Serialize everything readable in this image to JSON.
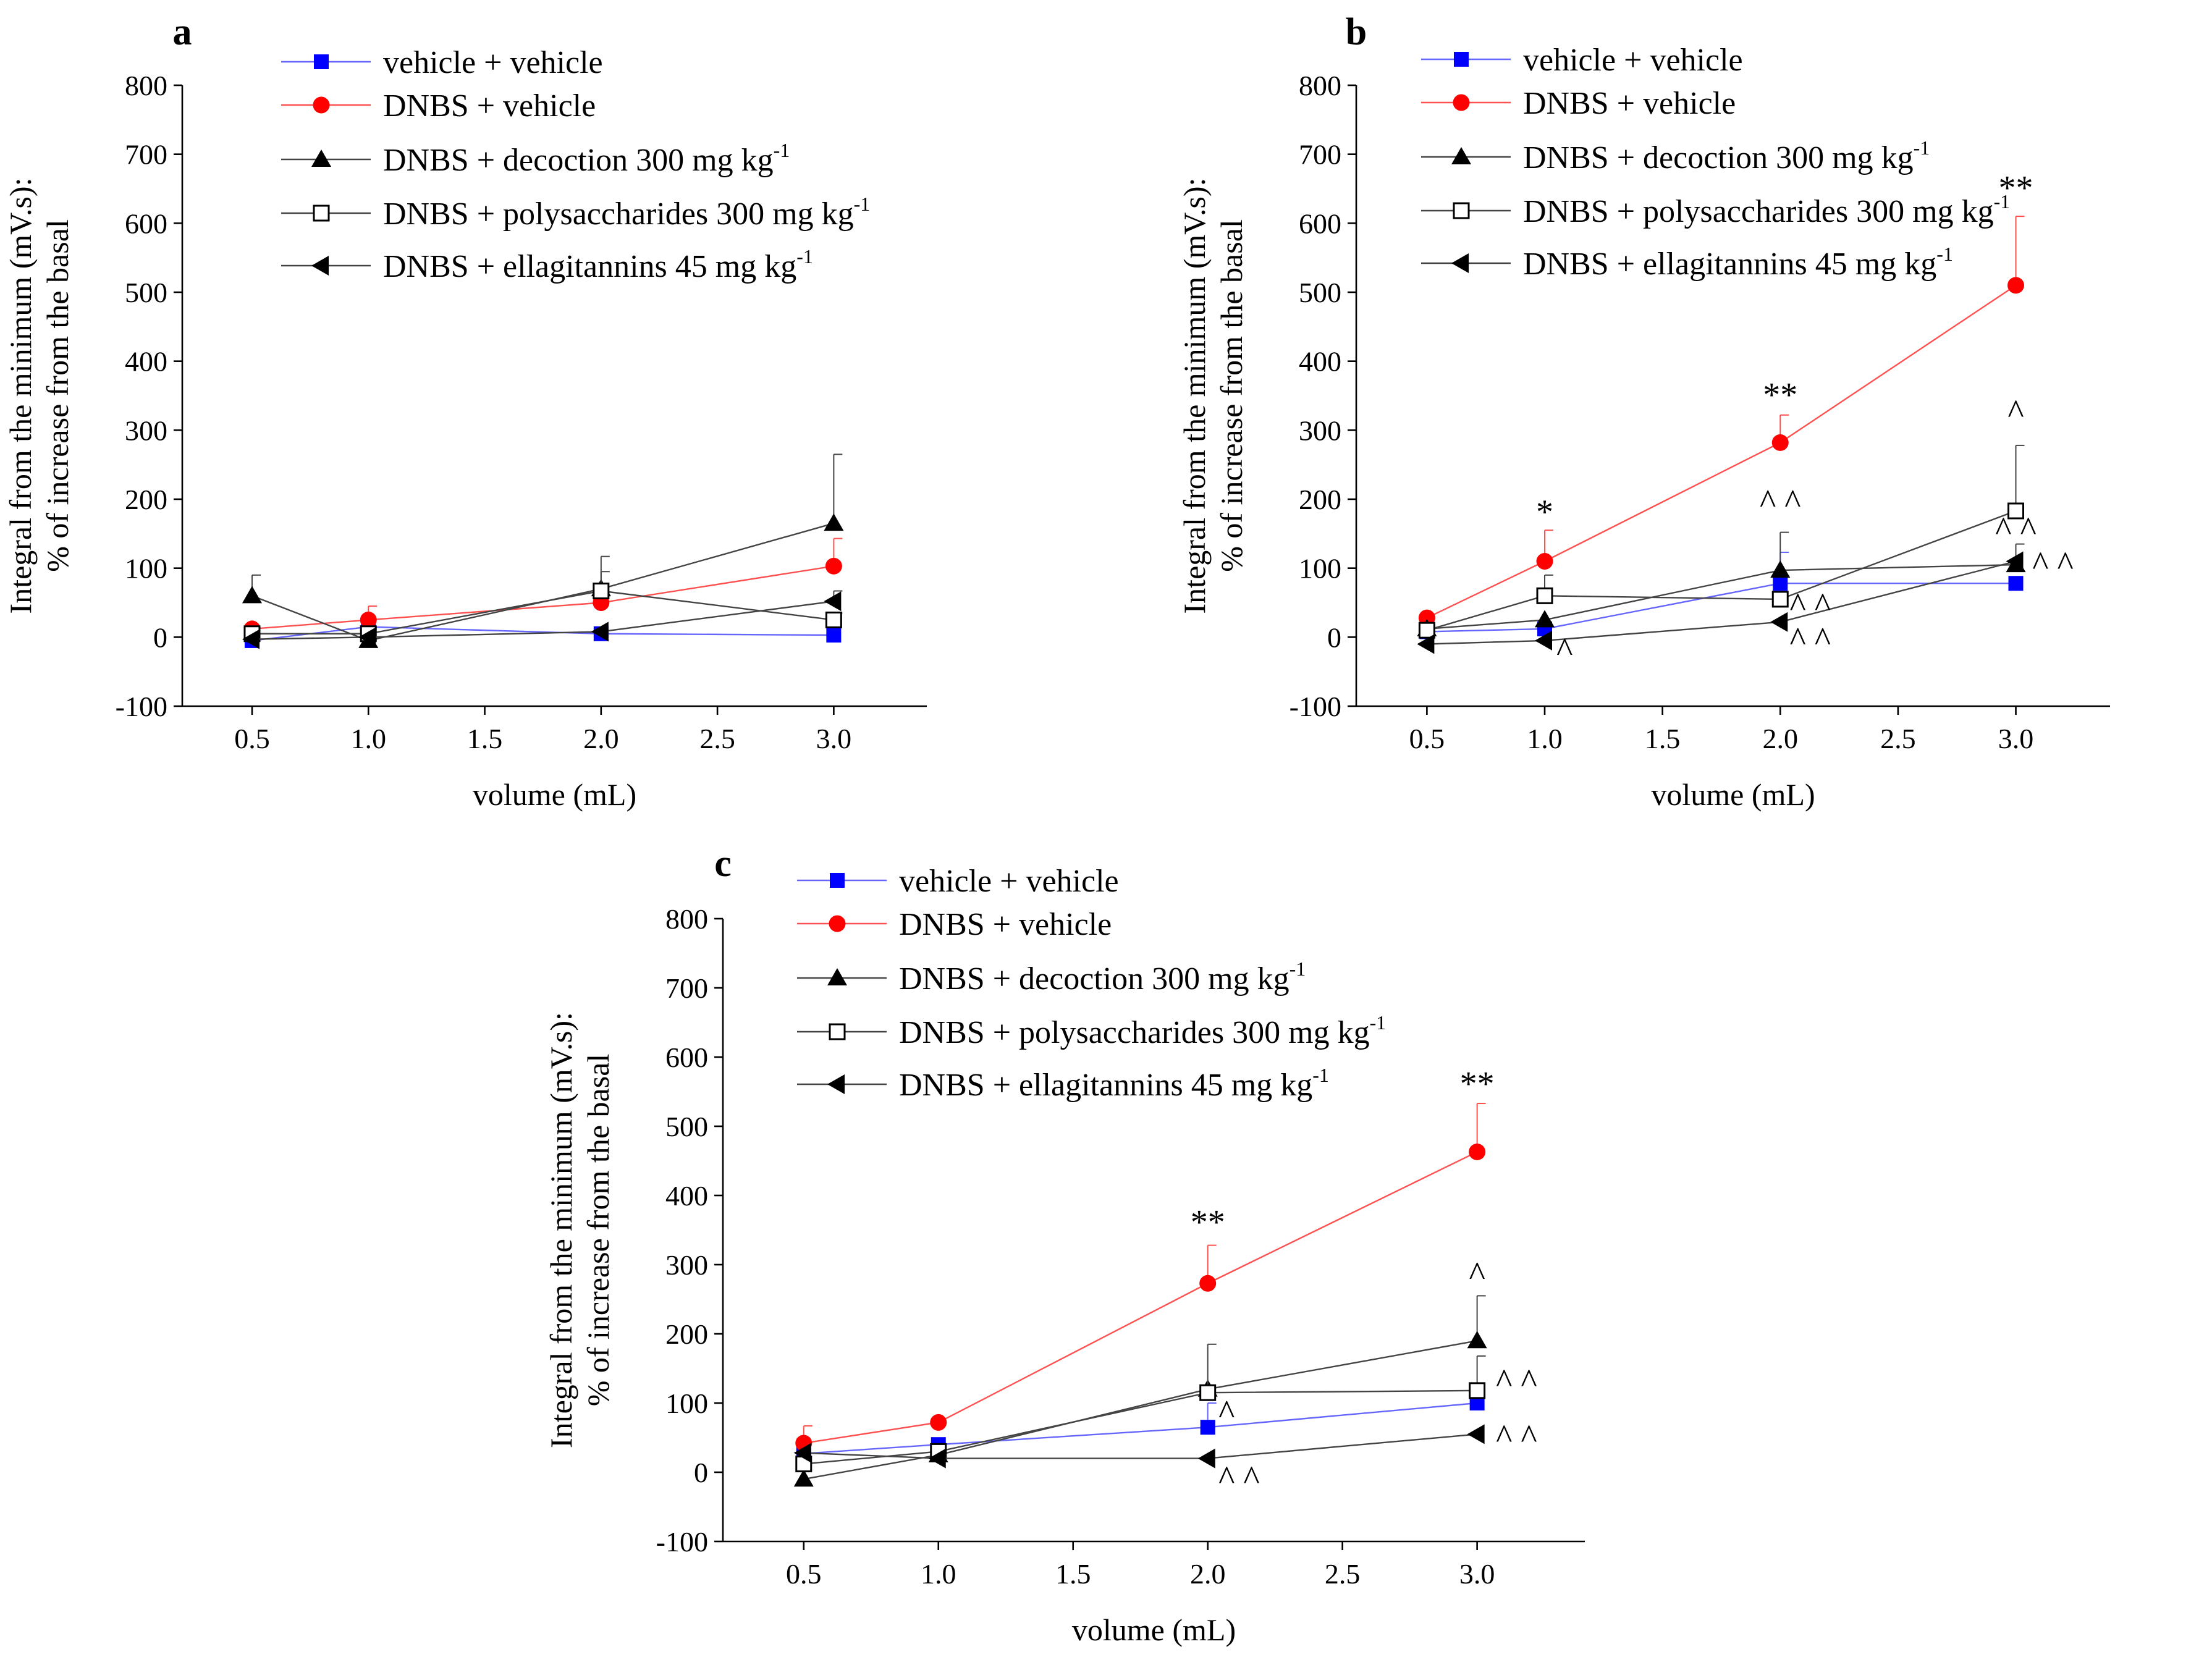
{
  "chart_data": [
    {
      "panel": "a",
      "type": "line",
      "xlabel": "volume (mL)",
      "ylabel_line1": "Integral from the minimum (mV.s):",
      "ylabel_line2": "% of increase from the basal",
      "xlim": [
        0.2,
        3.4
      ],
      "ylim": [
        -100,
        800
      ],
      "xticks": [
        0.5,
        1.0,
        1.5,
        2.0,
        2.5,
        3.0
      ],
      "xtick_labels": [
        "0.5",
        "1.0",
        "1.5",
        "2.0",
        "2.5",
        "3.0"
      ],
      "yticks": [
        -100,
        0,
        100,
        200,
        300,
        400,
        500,
        600,
        700,
        800
      ],
      "ytick_labels": [
        "-100",
        "0",
        "100",
        "200",
        "300",
        "400",
        "500",
        "600",
        "700",
        "800"
      ],
      "x": [
        0.5,
        1.0,
        2.0,
        3.0
      ],
      "series": [
        {
          "name": "vehicle + vehicle",
          "values": [
            -5,
            15,
            5,
            3
          ],
          "errors": [
            0,
            0,
            0,
            0
          ]
        },
        {
          "name": "DNBS + vehicle",
          "values": [
            12,
            25,
            50,
            103
          ],
          "errors": [
            0,
            20,
            0,
            40
          ]
        },
        {
          "name": "DNBS + decoction 300 mg kg-1",
          "values": [
            60,
            -5,
            70,
            165
          ],
          "errors": [
            30,
            0,
            25,
            100
          ]
        },
        {
          "name": "DNBS + polysaccharides 300 mg kg-1",
          "values": [
            5,
            5,
            67,
            25
          ],
          "errors": [
            0,
            0,
            50,
            10
          ]
        },
        {
          "name": "DNBS + ellagitannins 45 mg kg-1",
          "values": [
            -3,
            0,
            8,
            52
          ],
          "errors": [
            0,
            0,
            0,
            15
          ]
        }
      ],
      "annotations": []
    },
    {
      "panel": "b",
      "type": "line",
      "xlabel": "volume (mL)",
      "ylabel_line1": "Integral from the minimum (mV.s):",
      "ylabel_line2": "% of increase from the basal",
      "xlim": [
        0.2,
        3.4
      ],
      "ylim": [
        -100,
        800
      ],
      "xticks": [
        0.5,
        1.0,
        1.5,
        2.0,
        2.5,
        3.0
      ],
      "xtick_labels": [
        "0.5",
        "1.0",
        "1.5",
        "2.0",
        "2.5",
        "3.0"
      ],
      "yticks": [
        -100,
        0,
        100,
        200,
        300,
        400,
        500,
        600,
        700,
        800
      ],
      "ytick_labels": [
        "-100",
        "0",
        "100",
        "200",
        "300",
        "400",
        "500",
        "600",
        "700",
        "800"
      ],
      "x": [
        0.5,
        1.0,
        2.0,
        3.0
      ],
      "series": [
        {
          "name": "vehicle + vehicle",
          "values": [
            8,
            12,
            78,
            78
          ],
          "errors": [
            0,
            0,
            45,
            0
          ]
        },
        {
          "name": "DNBS + vehicle",
          "values": [
            28,
            110,
            282,
            510
          ],
          "errors": [
            0,
            45,
            40,
            100
          ]
        },
        {
          "name": "DNBS + decoction 300 mg kg-1",
          "values": [
            12,
            25,
            97,
            105
          ],
          "errors": [
            0,
            0,
            55,
            0
          ]
        },
        {
          "name": "DNBS + polysaccharides 300 mg kg-1",
          "values": [
            10,
            60,
            55,
            183
          ],
          "errors": [
            0,
            30,
            0,
            95
          ]
        },
        {
          "name": "DNBS + ellagitannins 45 mg kg-1",
          "values": [
            -10,
            -5,
            22,
            110
          ],
          "errors": [
            0,
            0,
            0,
            25
          ]
        }
      ],
      "annotations": [
        {
          "text": "*",
          "x": 1.0,
          "y": 165,
          "anchor": "middle"
        },
        {
          "text": "**",
          "x": 2.0,
          "y": 335,
          "anchor": "middle"
        },
        {
          "text": "**",
          "x": 3.0,
          "y": 635,
          "anchor": "middle"
        },
        {
          "text": "^",
          "x": 1.05,
          "y": -35,
          "anchor": "start"
        },
        {
          "text": "^ ^",
          "x": 2.0,
          "y": 180,
          "anchor": "middle"
        },
        {
          "text": "^ ^",
          "x": 2.04,
          "y": 30,
          "anchor": "start"
        },
        {
          "text": "^ ^",
          "x": 2.04,
          "y": -20,
          "anchor": "start"
        },
        {
          "text": "^",
          "x": 3.0,
          "y": 310,
          "anchor": "middle"
        },
        {
          "text": "^ ^",
          "x": 3.0,
          "y": 140,
          "anchor": "middle"
        },
        {
          "text": "^ ^",
          "x": 3.07,
          "y": 90,
          "anchor": "start"
        }
      ]
    },
    {
      "panel": "c",
      "type": "line",
      "xlabel": "volume (mL)",
      "ylabel_line1": "Integral from the minimum (mV.s):",
      "ylabel_line2": "% of increase from the basal",
      "xlim": [
        0.2,
        3.4
      ],
      "ylim": [
        -100,
        800
      ],
      "xticks": [
        0.5,
        1.0,
        1.5,
        2.0,
        2.5,
        3.0
      ],
      "xtick_labels": [
        "0.5",
        "1.0",
        "1.5",
        "2.0",
        "2.5",
        "3.0"
      ],
      "yticks": [
        -100,
        0,
        100,
        200,
        300,
        400,
        500,
        600,
        700,
        800
      ],
      "ytick_labels": [
        "-100",
        "0",
        "100",
        "200",
        "300",
        "400",
        "500",
        "600",
        "700",
        "800"
      ],
      "x": [
        0.5,
        1.0,
        2.0,
        3.0
      ],
      "series": [
        {
          "name": "vehicle + vehicle",
          "values": [
            27,
            40,
            65,
            100
          ],
          "errors": [
            0,
            0,
            35,
            0
          ]
        },
        {
          "name": "DNBS + vehicle",
          "values": [
            42,
            72,
            273,
            463
          ],
          "errors": [
            25,
            0,
            55,
            70
          ]
        },
        {
          "name": "DNBS + decoction 300 mg kg-1",
          "values": [
            -10,
            25,
            120,
            190
          ],
          "errors": [
            0,
            0,
            0,
            65
          ]
        },
        {
          "name": "DNBS + polysaccharides 300 mg kg-1",
          "values": [
            12,
            30,
            115,
            118
          ],
          "errors": [
            0,
            0,
            70,
            50
          ]
        },
        {
          "name": "DNBS + ellagitannins 45 mg kg-1",
          "values": [
            28,
            20,
            20,
            55
          ],
          "errors": [
            0,
            0,
            0,
            0
          ]
        }
      ],
      "annotations": [
        {
          "text": "**",
          "x": 2.0,
          "y": 345,
          "anchor": "middle"
        },
        {
          "text": "**",
          "x": 3.0,
          "y": 545,
          "anchor": "middle"
        },
        {
          "text": "^",
          "x": 3.0,
          "y": 270,
          "anchor": "middle"
        },
        {
          "text": "^ ^",
          "x": 3.07,
          "y": 115,
          "anchor": "start"
        },
        {
          "text": "^",
          "x": 2.04,
          "y": 70,
          "anchor": "start"
        },
        {
          "text": "^ ^",
          "x": 2.04,
          "y": -25,
          "anchor": "start"
        },
        {
          "text": "^ ^",
          "x": 3.07,
          "y": 35,
          "anchor": "start"
        }
      ]
    }
  ],
  "legend": [
    {
      "label": "vehicle + vehicle",
      "sup": "",
      "color": "#0000ff",
      "line_color": "#6666ff",
      "marker": "filled-square"
    },
    {
      "label": "DNBS + vehicle",
      "sup": "",
      "color": "#ff0000",
      "line_color": "#ff5050",
      "marker": "filled-circle"
    },
    {
      "label": "DNBS + decoction 300 mg kg",
      "sup": "-1",
      "color": "#000000",
      "line_color": "#444444",
      "marker": "filled-triangle-up"
    },
    {
      "label": "DNBS + polysaccharides 300 mg kg",
      "sup": "-1",
      "color": "#000000",
      "line_color": "#444444",
      "marker": "open-square"
    },
    {
      "label": "DNBS + ellagitannins 45 mg kg",
      "sup": "-1",
      "color": "#000000",
      "line_color": "#444444",
      "marker": "filled-triangle-left"
    }
  ],
  "panel_labels": [
    "a",
    "b",
    "c"
  ]
}
